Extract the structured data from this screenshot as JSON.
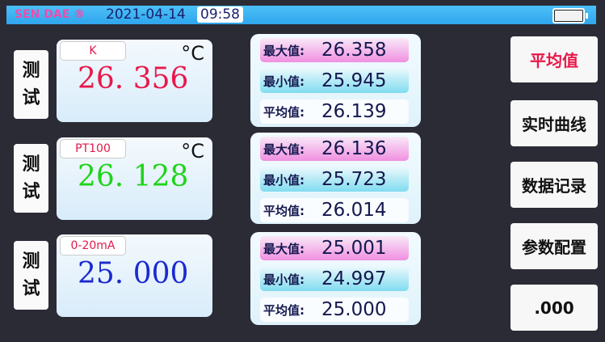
{
  "header": {
    "brand": "SEN DAE ®",
    "date": "2021-04-14",
    "time": "09:58",
    "battery_icon": "battery-icon"
  },
  "channels": [
    {
      "test_label": [
        "测",
        "试"
      ],
      "type": "K",
      "unit": "°C",
      "value": "26. 356",
      "color": "#e8194a",
      "stats": [
        {
          "label": "最大值:",
          "value": "26.358"
        },
        {
          "label": "最小值:",
          "value": "25.945"
        },
        {
          "label": "平均值:",
          "value": "26.139"
        }
      ]
    },
    {
      "test_label": [
        "测",
        "试"
      ],
      "type": "PT100",
      "unit": "°C",
      "value": "26. 128",
      "color": "#1fd41a",
      "stats": [
        {
          "label": "最大值:",
          "value": "26.136"
        },
        {
          "label": "最小值:",
          "value": "25.723"
        },
        {
          "label": "平均值:",
          "value": "26.014"
        }
      ]
    },
    {
      "test_label": [
        "测",
        "试"
      ],
      "type": "0-20mA",
      "unit": "",
      "value": "25. 000",
      "color": "#1a2ad0",
      "stats": [
        {
          "label": "最大值:",
          "value": "25.001"
        },
        {
          "label": "最小值:",
          "value": "24.997"
        },
        {
          "label": "平均值:",
          "value": "25.000"
        }
      ]
    }
  ],
  "menu": [
    {
      "label": "平均值",
      "color": "#e8194a"
    },
    {
      "label": "实时曲线",
      "color": "#111111"
    },
    {
      "label": "数据记录",
      "color": "#111111"
    },
    {
      "label": "参数配置",
      "color": "#111111"
    },
    {
      "label": ".000",
      "color": "#111111"
    }
  ]
}
